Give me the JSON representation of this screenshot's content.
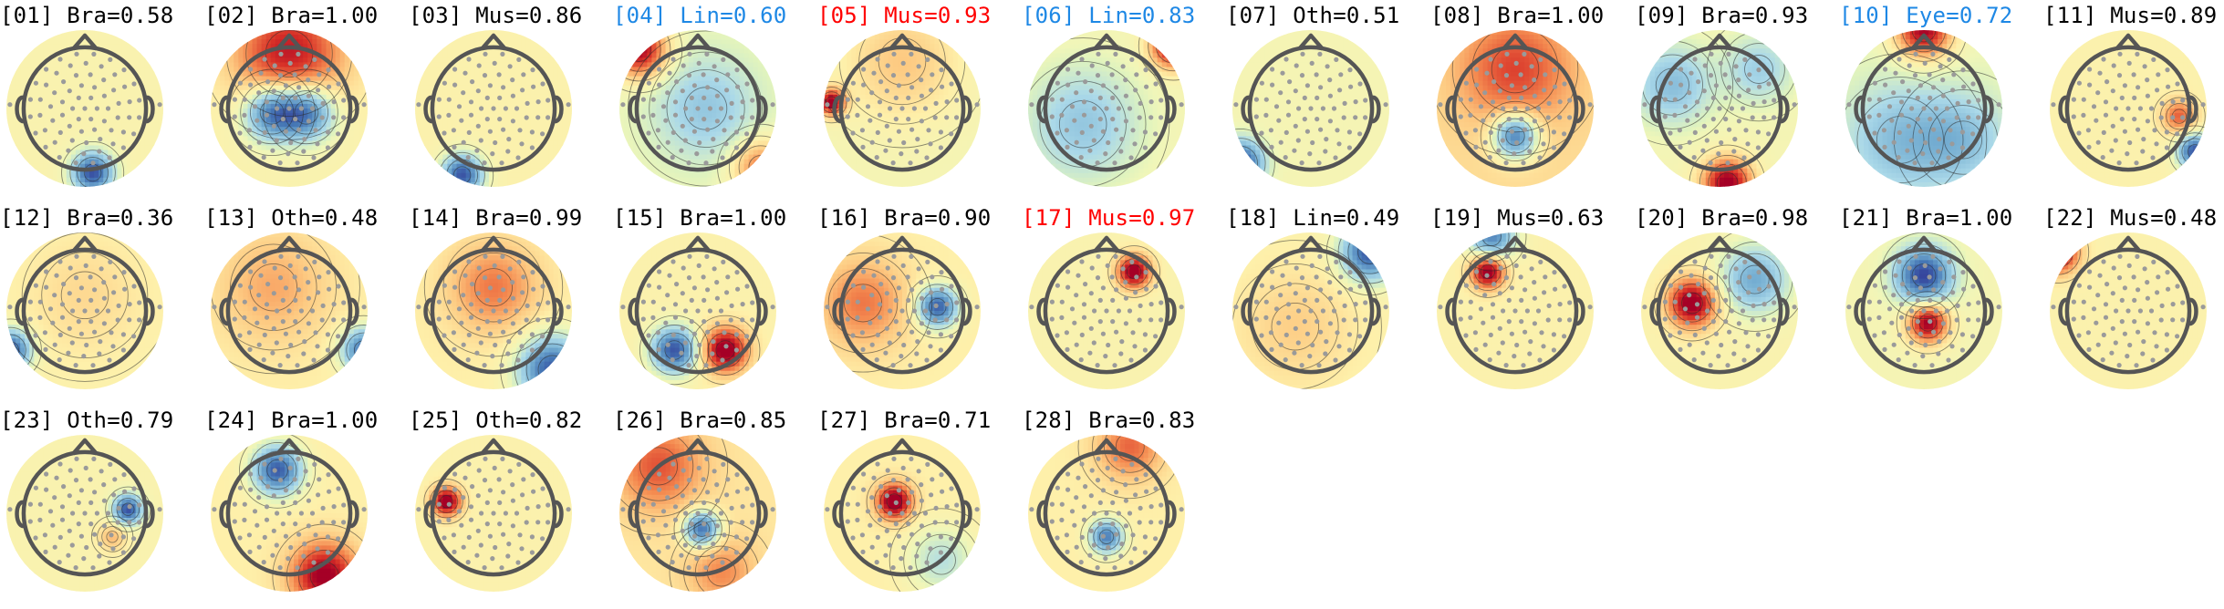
{
  "figure": {
    "background": "#ffffff",
    "label_colors": {
      "default": "#000000",
      "flagged_artifact": "#ff0000",
      "flagged_noise": "#1e88e5"
    },
    "colormap": "RdYlBu_r",
    "head_color": "#555555",
    "sensor_color": "#9a9a9a"
  },
  "chart_data": {
    "type": "topomap",
    "components": [
      {
        "id": "[01]",
        "label": "Bra=0.58",
        "color_key": "default",
        "sources": [
          {
            "x": 0.1,
            "y": -0.82,
            "amp": -1.0,
            "w": 0.18
          }
        ],
        "base": 0.1
      },
      {
        "id": "[02]",
        "label": "Bra=1.00",
        "color_key": "default",
        "sources": [
          {
            "x": -0.22,
            "y": -0.05,
            "amp": -0.9,
            "w": 0.25
          },
          {
            "x": 0.22,
            "y": -0.05,
            "amp": -0.9,
            "w": 0.25
          },
          {
            "x": 0.0,
            "y": 0.7,
            "amp": 0.8,
            "w": 0.5
          }
        ],
        "base": 0.1
      },
      {
        "id": "[03]",
        "label": "Mus=0.86",
        "color_key": "default",
        "sources": [
          {
            "x": -0.4,
            "y": -0.85,
            "amp": -1.0,
            "w": 0.18
          }
        ],
        "base": 0.12
      },
      {
        "id": "[04]",
        "label": "Lin=0.60",
        "color_key": "flagged_noise",
        "sources": [
          {
            "x": -0.75,
            "y": 0.75,
            "amp": 1.0,
            "w": 0.25
          },
          {
            "x": 0.8,
            "y": -0.75,
            "amp": 0.6,
            "w": 0.25
          },
          {
            "x": 0.1,
            "y": 0.0,
            "amp": -0.35,
            "w": 0.45
          }
        ],
        "base": 0.0
      },
      {
        "id": "[05]",
        "label": "Mus=0.93",
        "color_key": "flagged_artifact",
        "sources": [
          {
            "x": -0.9,
            "y": 0.08,
            "amp": 1.0,
            "w": 0.12
          },
          {
            "x": 0.0,
            "y": 0.6,
            "amp": 0.3,
            "w": 0.5
          }
        ],
        "base": 0.05
      },
      {
        "id": "[06]",
        "label": "Lin=0.83",
        "color_key": "flagged_noise",
        "sources": [
          {
            "x": 0.85,
            "y": 0.8,
            "amp": 1.0,
            "w": 0.2
          },
          {
            "x": -0.3,
            "y": -0.2,
            "amp": -0.4,
            "w": 0.5
          }
        ],
        "base": 0.05
      },
      {
        "id": "[07]",
        "label": "Oth=0.51",
        "color_key": "default",
        "sources": [
          {
            "x": -0.9,
            "y": -0.7,
            "amp": -1.0,
            "w": 0.2
          }
        ],
        "base": 0.05
      },
      {
        "id": "[08]",
        "label": "Bra=1.00",
        "color_key": "default",
        "sources": [
          {
            "x": 0.0,
            "y": -0.35,
            "amp": -1.0,
            "w": 0.2
          },
          {
            "x": 0.0,
            "y": 0.5,
            "amp": 0.5,
            "w": 0.5
          }
        ],
        "base": 0.25
      },
      {
        "id": "[09]",
        "label": "Bra=0.93",
        "color_key": "default",
        "sources": [
          {
            "x": 0.1,
            "y": -0.95,
            "amp": 1.0,
            "w": 0.22
          },
          {
            "x": -0.6,
            "y": 0.3,
            "amp": -0.45,
            "w": 0.35
          },
          {
            "x": 0.5,
            "y": 0.5,
            "amp": -0.35,
            "w": 0.3
          }
        ],
        "base": 0.05
      },
      {
        "id": "[10]",
        "label": "Eye=0.72",
        "color_key": "flagged_noise",
        "sources": [
          {
            "x": 0.0,
            "y": 1.0,
            "amp": 1.0,
            "w": 0.25
          },
          {
            "x": -0.3,
            "y": -0.4,
            "amp": -0.4,
            "w": 0.5
          },
          {
            "x": 0.5,
            "y": -0.4,
            "amp": -0.35,
            "w": 0.4
          }
        ],
        "base": 0.0
      },
      {
        "id": "[11]",
        "label": "Mus=0.89",
        "color_key": "default",
        "sources": [
          {
            "x": 0.85,
            "y": -0.55,
            "amp": -1.0,
            "w": 0.15
          },
          {
            "x": 0.65,
            "y": -0.1,
            "amp": 0.55,
            "w": 0.15
          }
        ],
        "base": 0.12
      },
      {
        "id": "[12]",
        "label": "Bra=0.36",
        "color_key": "default",
        "sources": [
          {
            "x": -0.95,
            "y": -0.5,
            "amp": -1.0,
            "w": 0.18
          },
          {
            "x": 0.0,
            "y": 0.2,
            "amp": 0.15,
            "w": 0.5
          }
        ],
        "base": 0.12
      },
      {
        "id": "[13]",
        "label": "Oth=0.48",
        "color_key": "default",
        "sources": [
          {
            "x": 0.95,
            "y": -0.5,
            "amp": -0.9,
            "w": 0.2
          },
          {
            "x": -0.2,
            "y": 0.3,
            "amp": 0.3,
            "w": 0.5
          }
        ],
        "base": 0.15
      },
      {
        "id": "[14]",
        "label": "Bra=0.99",
        "color_key": "default",
        "sources": [
          {
            "x": 0.75,
            "y": -0.75,
            "amp": -1.0,
            "w": 0.3
          },
          {
            "x": 0.0,
            "y": 0.3,
            "amp": 0.45,
            "w": 0.4
          }
        ],
        "base": 0.15
      },
      {
        "id": "[15]",
        "label": "Bra=1.00",
        "color_key": "default",
        "sources": [
          {
            "x": -0.3,
            "y": -0.5,
            "amp": -1.0,
            "w": 0.2
          },
          {
            "x": 0.35,
            "y": -0.5,
            "amp": 1.0,
            "w": 0.2
          }
        ],
        "base": 0.12
      },
      {
        "id": "[16]",
        "label": "Bra=0.90",
        "color_key": "default",
        "sources": [
          {
            "x": 0.45,
            "y": 0.05,
            "amp": -1.0,
            "w": 0.18
          },
          {
            "x": -0.5,
            "y": 0.1,
            "amp": 0.45,
            "w": 0.4
          }
        ],
        "base": 0.15
      },
      {
        "id": "[17]",
        "label": "Mus=0.97",
        "color_key": "flagged_artifact",
        "sources": [
          {
            "x": 0.35,
            "y": 0.5,
            "amp": 1.0,
            "w": 0.15
          }
        ],
        "base": 0.1
      },
      {
        "id": "[18]",
        "label": "Lin=0.49",
        "color_key": "default",
        "sources": [
          {
            "x": 0.75,
            "y": 0.75,
            "amp": -1.0,
            "w": 0.25
          },
          {
            "x": -0.2,
            "y": -0.2,
            "amp": 0.2,
            "w": 0.5
          }
        ],
        "base": 0.12
      },
      {
        "id": "[19]",
        "label": "Mus=0.63",
        "color_key": "default",
        "sources": [
          {
            "x": -0.35,
            "y": 0.5,
            "amp": 1.0,
            "w": 0.15
          },
          {
            "x": -0.3,
            "y": 0.95,
            "amp": -0.8,
            "w": 0.2
          }
        ],
        "base": 0.12
      },
      {
        "id": "[20]",
        "label": "Bra=0.98",
        "color_key": "default",
        "sources": [
          {
            "x": -0.35,
            "y": 0.1,
            "amp": 1.0,
            "w": 0.22
          },
          {
            "x": 0.45,
            "y": 0.4,
            "amp": -0.6,
            "w": 0.3
          }
        ],
        "base": 0.1
      },
      {
        "id": "[21]",
        "label": "Bra=1.00",
        "color_key": "default",
        "sources": [
          {
            "x": 0.0,
            "y": 0.45,
            "amp": -1.0,
            "w": 0.25
          },
          {
            "x": 0.05,
            "y": -0.15,
            "amp": 1.0,
            "w": 0.18
          }
        ],
        "base": 0.05
      },
      {
        "id": "[22]",
        "label": "Mus=0.48",
        "color_key": "default",
        "sources": [
          {
            "x": -0.9,
            "y": 0.75,
            "amp": 1.0,
            "w": 0.18
          }
        ],
        "base": 0.12
      },
      {
        "id": "[23]",
        "label": "Oth=0.79",
        "color_key": "default",
        "sources": [
          {
            "x": 0.55,
            "y": 0.05,
            "amp": -1.0,
            "w": 0.13
          },
          {
            "x": 0.35,
            "y": -0.3,
            "amp": 0.3,
            "w": 0.12
          }
        ],
        "base": 0.1
      },
      {
        "id": "[24]",
        "label": "Bra=1.00",
        "color_key": "default",
        "sources": [
          {
            "x": -0.15,
            "y": 0.55,
            "amp": -1.0,
            "w": 0.22
          },
          {
            "x": 0.45,
            "y": -0.8,
            "amp": 0.9,
            "w": 0.3
          }
        ],
        "base": 0.15
      },
      {
        "id": "[25]",
        "label": "Oth=0.82",
        "color_key": "default",
        "sources": [
          {
            "x": -0.6,
            "y": 0.15,
            "amp": 1.0,
            "w": 0.13
          }
        ],
        "base": 0.12
      },
      {
        "id": "[26]",
        "label": "Bra=0.85",
        "color_key": "default",
        "sources": [
          {
            "x": 0.05,
            "y": -0.2,
            "amp": -1.0,
            "w": 0.16
          },
          {
            "x": -0.5,
            "y": 0.6,
            "amp": 0.5,
            "w": 0.4
          },
          {
            "x": 0.3,
            "y": -0.75,
            "amp": 0.35,
            "w": 0.3
          }
        ],
        "base": 0.2
      },
      {
        "id": "[27]",
        "label": "Bra=0.71",
        "color_key": "default",
        "sources": [
          {
            "x": -0.1,
            "y": 0.15,
            "amp": 1.0,
            "w": 0.16
          },
          {
            "x": 0.5,
            "y": -0.6,
            "amp": -0.35,
            "w": 0.3
          }
        ],
        "base": 0.15
      },
      {
        "id": "[28]",
        "label": "Bra=0.83",
        "color_key": "default",
        "sources": [
          {
            "x": 0.0,
            "y": -0.3,
            "amp": -0.85,
            "w": 0.15
          },
          {
            "x": 0.3,
            "y": 0.85,
            "amp": 0.5,
            "w": 0.3
          }
        ],
        "base": 0.15
      }
    ]
  }
}
